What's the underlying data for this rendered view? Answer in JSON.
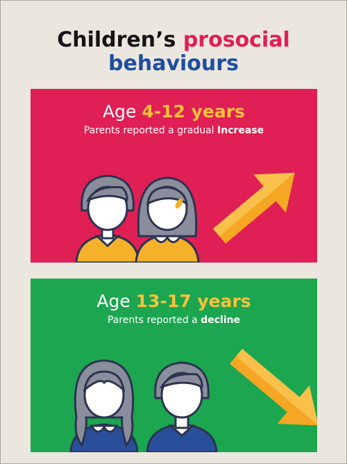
{
  "title": {
    "line1": "Children’s",
    "highlight": "prosocial",
    "line2": "behaviours"
  },
  "panels": [
    {
      "age_prefix": "Age",
      "age_range": "4-12 years",
      "text": "Parents reported a gradual",
      "trend": "Increase"
    },
    {
      "age_prefix": "Age",
      "age_range": "13-17 years",
      "text": "Parents reported a",
      "trend": "decline"
    }
  ]
}
